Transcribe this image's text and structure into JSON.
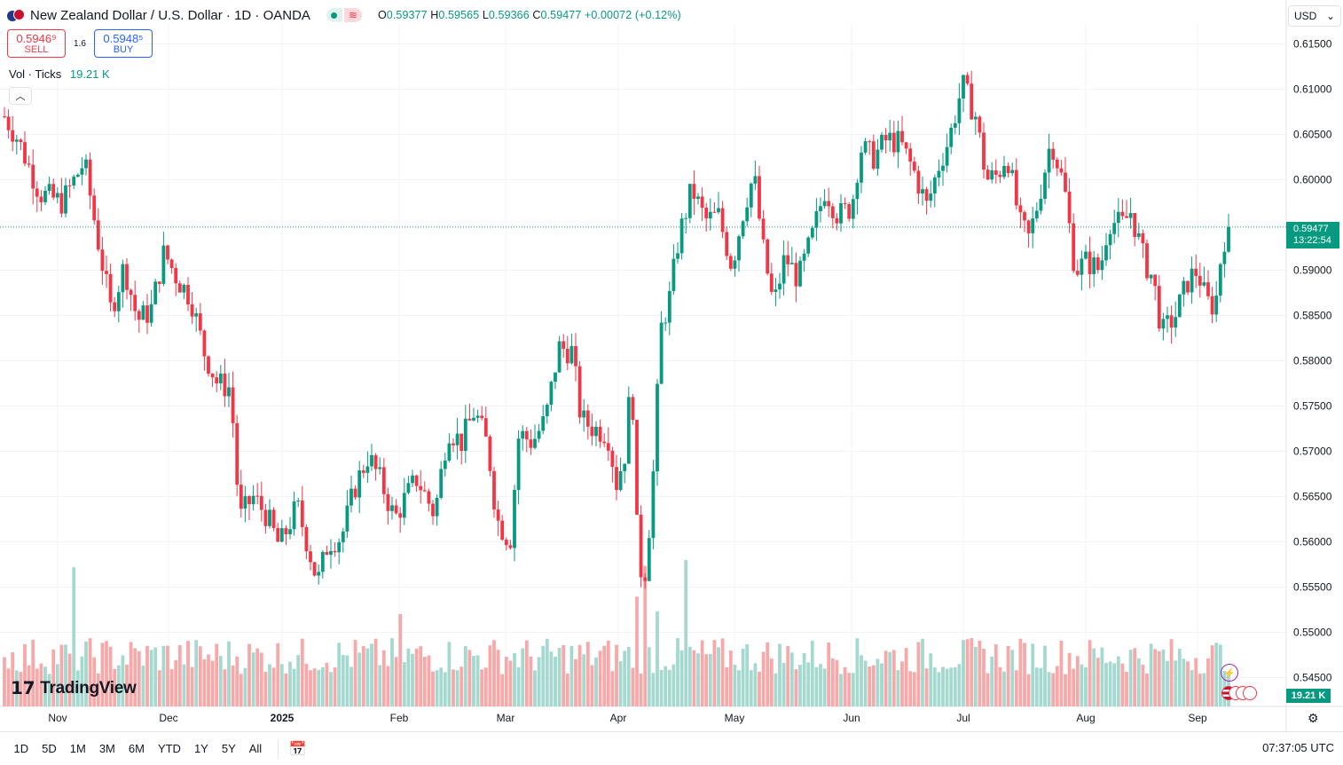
{
  "header": {
    "symbol_title": "New Zealand Dollar / U.S. Dollar · 1D · OANDA",
    "ohlc": {
      "o_label": "O",
      "o": "0.59377",
      "h_label": "H",
      "h": "0.59565",
      "l_label": "L",
      "l": "0.59366",
      "c_label": "C",
      "c": "0.59477",
      "change": "+0.00072 (+0.12%)"
    }
  },
  "trade": {
    "sell_price": "0.5946⁹",
    "sell_label": "SELL",
    "spread": "1.6",
    "buy_price": "0.5948⁵",
    "buy_label": "BUY"
  },
  "volume": {
    "label": "Vol · Ticks",
    "value": "19.21 K"
  },
  "currency_selector": "USD",
  "last_price": {
    "price": "0.59477",
    "countdown": "13:22:54"
  },
  "volume_badge": "19.21 K",
  "logo_text": "TradingView",
  "range_buttons": [
    "1D",
    "5D",
    "1M",
    "3M",
    "6M",
    "YTD",
    "1Y",
    "5Y",
    "All"
  ],
  "clock": "07:37:05 UTC",
  "icons": {
    "flag": "nzd-usd-flag-icon",
    "gear": "settings-icon",
    "calendar": "go-to-date-icon",
    "bolt": "lightning-icon",
    "chevron": "chevron-up-icon"
  },
  "chart_data": {
    "type": "candlestick",
    "price_ticks": [
      "0.61500",
      "0.61000",
      "0.60500",
      "0.60000",
      "0.59000",
      "0.58500",
      "0.58000",
      "0.57500",
      "0.57000",
      "0.56500",
      "0.56000",
      "0.55500",
      "0.55000",
      "0.54500"
    ],
    "ylim": [
      0.5435,
      0.6165
    ],
    "month_labels": [
      "Nov",
      "Dec",
      "2025",
      "Feb",
      "Mar",
      "Apr",
      "May",
      "Jun",
      "Jul",
      "Aug",
      "Sep"
    ],
    "last_close": 0.59477,
    "colors": {
      "up": "#089981",
      "down": "#f23645",
      "vol_up": "#a5d9cf",
      "vol_down": "#f7a9a9",
      "grid": "#f0f3fa"
    },
    "anchors": [
      {
        "x": 5,
        "p": 0.607
      },
      {
        "x": 20,
        "p": 0.6045
      },
      {
        "x": 45,
        "p": 0.5985
      },
      {
        "x": 70,
        "p": 0.5975
      },
      {
        "x": 95,
        "p": 0.602
      },
      {
        "x": 110,
        "p": 0.5935
      },
      {
        "x": 125,
        "p": 0.5855
      },
      {
        "x": 140,
        "p": 0.5905
      },
      {
        "x": 155,
        "p": 0.5845
      },
      {
        "x": 170,
        "p": 0.5855
      },
      {
        "x": 185,
        "p": 0.592
      },
      {
        "x": 200,
        "p": 0.589
      },
      {
        "x": 215,
        "p": 0.587
      },
      {
        "x": 230,
        "p": 0.581
      },
      {
        "x": 245,
        "p": 0.5775
      },
      {
        "x": 260,
        "p": 0.577
      },
      {
        "x": 270,
        "p": 0.5625
      },
      {
        "x": 285,
        "p": 0.565
      },
      {
        "x": 300,
        "p": 0.563
      },
      {
        "x": 315,
        "p": 0.5595
      },
      {
        "x": 335,
        "p": 0.564
      },
      {
        "x": 350,
        "p": 0.5585
      },
      {
        "x": 358,
        "p": 0.5555
      },
      {
        "x": 370,
        "p": 0.56
      },
      {
        "x": 385,
        "p": 0.5605
      },
      {
        "x": 400,
        "p": 0.566
      },
      {
        "x": 415,
        "p": 0.5695
      },
      {
        "x": 430,
        "p": 0.5665
      },
      {
        "x": 445,
        "p": 0.5625
      },
      {
        "x": 455,
        "p": 0.5645
      },
      {
        "x": 470,
        "p": 0.567
      },
      {
        "x": 490,
        "p": 0.563
      },
      {
        "x": 505,
        "p": 0.5725
      },
      {
        "x": 520,
        "p": 0.571
      },
      {
        "x": 535,
        "p": 0.5745
      },
      {
        "x": 550,
        "p": 0.5705
      },
      {
        "x": 560,
        "p": 0.5625
      },
      {
        "x": 575,
        "p": 0.56
      },
      {
        "x": 585,
        "p": 0.572
      },
      {
        "x": 600,
        "p": 0.571
      },
      {
        "x": 615,
        "p": 0.5735
      },
      {
        "x": 630,
        "p": 0.5815
      },
      {
        "x": 645,
        "p": 0.581
      },
      {
        "x": 655,
        "p": 0.5735
      },
      {
        "x": 670,
        "p": 0.5725
      },
      {
        "x": 685,
        "p": 0.572
      },
      {
        "x": 695,
        "p": 0.5665
      },
      {
        "x": 705,
        "p": 0.57
      },
      {
        "x": 712,
        "p": 0.579
      },
      {
        "x": 718,
        "p": 0.5615
      },
      {
        "x": 725,
        "p": 0.5545
      },
      {
        "x": 735,
        "p": 0.565
      },
      {
        "x": 745,
        "p": 0.5835
      },
      {
        "x": 755,
        "p": 0.587
      },
      {
        "x": 765,
        "p": 0.5935
      },
      {
        "x": 780,
        "p": 0.599
      },
      {
        "x": 795,
        "p": 0.5955
      },
      {
        "x": 810,
        "p": 0.596
      },
      {
        "x": 825,
        "p": 0.5905
      },
      {
        "x": 840,
        "p": 0.5975
      },
      {
        "x": 850,
        "p": 0.6005
      },
      {
        "x": 860,
        "p": 0.5925
      },
      {
        "x": 872,
        "p": 0.586
      },
      {
        "x": 885,
        "p": 0.5915
      },
      {
        "x": 900,
        "p": 0.589
      },
      {
        "x": 915,
        "p": 0.5935
      },
      {
        "x": 930,
        "p": 0.599
      },
      {
        "x": 945,
        "p": 0.596
      },
      {
        "x": 960,
        "p": 0.597
      },
      {
        "x": 970,
        "p": 0.6035
      },
      {
        "x": 985,
        "p": 0.6025
      },
      {
        "x": 1000,
        "p": 0.6045
      },
      {
        "x": 1015,
        "p": 0.604
      },
      {
        "x": 1030,
        "p": 0.601
      },
      {
        "x": 1045,
        "p": 0.597
      },
      {
        "x": 1058,
        "p": 0.6015
      },
      {
        "x": 1070,
        "p": 0.6045
      },
      {
        "x": 1085,
        "p": 0.6105
      },
      {
        "x": 1100,
        "p": 0.607
      },
      {
        "x": 1112,
        "p": 0.6
      },
      {
        "x": 1125,
        "p": 0.6005
      },
      {
        "x": 1135,
        "p": 0.603
      },
      {
        "x": 1150,
        "p": 0.595
      },
      {
        "x": 1160,
        "p": 0.5935
      },
      {
        "x": 1170,
        "p": 0.5975
      },
      {
        "x": 1185,
        "p": 0.6045
      },
      {
        "x": 1200,
        "p": 0.599
      },
      {
        "x": 1212,
        "p": 0.59
      },
      {
        "x": 1225,
        "p": 0.591
      },
      {
        "x": 1240,
        "p": 0.59
      },
      {
        "x": 1250,
        "p": 0.5955
      },
      {
        "x": 1265,
        "p": 0.595
      },
      {
        "x": 1275,
        "p": 0.5965
      },
      {
        "x": 1290,
        "p": 0.591
      },
      {
        "x": 1300,
        "p": 0.589
      },
      {
        "x": 1310,
        "p": 0.583
      },
      {
        "x": 1325,
        "p": 0.585
      },
      {
        "x": 1340,
        "p": 0.589
      },
      {
        "x": 1350,
        "p": 0.59
      },
      {
        "x": 1360,
        "p": 0.5865
      },
      {
        "x": 1370,
        "p": 0.586
      },
      {
        "x": 1378,
        "p": 0.593
      },
      {
        "x": 1386,
        "p": 0.5947
      }
    ],
    "volume_spikes": [
      {
        "x": 84,
        "v": 0.95
      },
      {
        "x": 450,
        "v": 0.63
      },
      {
        "x": 728,
        "v": 0.96
      },
      {
        "x": 772,
        "v": 1.0
      },
      {
        "x": 718,
        "v": 0.75
      },
      {
        "x": 740,
        "v": 0.65
      }
    ]
  }
}
